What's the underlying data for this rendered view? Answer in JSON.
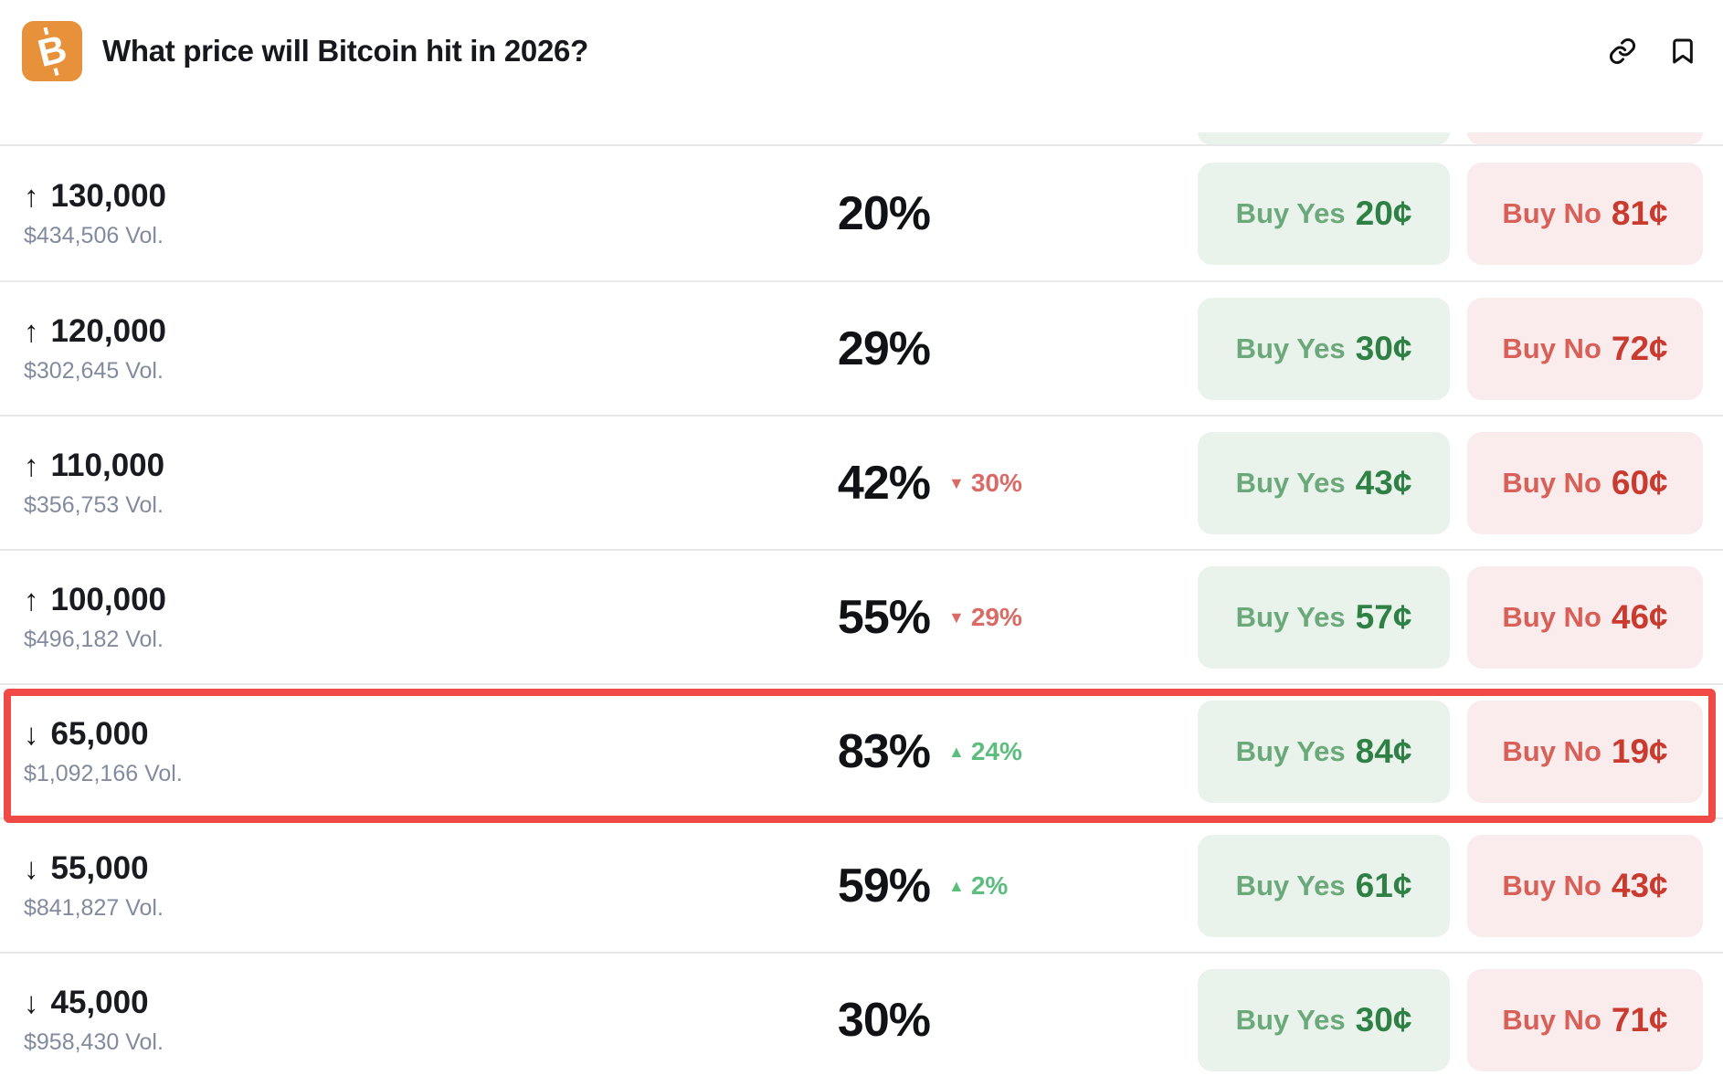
{
  "header": {
    "title": "What price will Bitcoin hit in 2026?",
    "icons": {
      "market": "bitcoin-icon",
      "link": "link-icon",
      "bookmark": "bookmark-icon"
    }
  },
  "glyphs": {
    "up_arrow": "↑",
    "down_arrow": "↓",
    "up_triangle": "▲",
    "down_triangle": "▼",
    "bitcoin": "B"
  },
  "buttons": {
    "yes_label": "Buy Yes",
    "no_label": "Buy No"
  },
  "colors": {
    "accent_orange": "#E8913B",
    "yes_green_bg": "#E9F2EB",
    "yes_green_text": "#6BA97B",
    "yes_green_price": "#2F8044",
    "no_red_bg": "#FAECEC",
    "no_red_text": "#D86058",
    "no_red_price": "#C93A2F",
    "up_green": "#5CBE7C",
    "down_red": "#D96A65",
    "highlight_red": "#EF4A45",
    "volume_gray": "#828B9E",
    "divider": "#E8E8E8",
    "text_dark": "#16181D"
  },
  "market": {
    "rows": [
      {
        "direction": "up",
        "price": "130,000",
        "volume": "$434,506 Vol.",
        "chance": "20%",
        "change": null,
        "yes_price": "20¢",
        "no_price": "81¢",
        "highlighted": false
      },
      {
        "direction": "up",
        "price": "120,000",
        "volume": "$302,645 Vol.",
        "chance": "29%",
        "change": null,
        "yes_price": "30¢",
        "no_price": "72¢",
        "highlighted": false
      },
      {
        "direction": "up",
        "price": "110,000",
        "volume": "$356,753 Vol.",
        "chance": "42%",
        "change": {
          "dir": "down",
          "value": "30%"
        },
        "yes_price": "43¢",
        "no_price": "60¢",
        "highlighted": false
      },
      {
        "direction": "up",
        "price": "100,000",
        "volume": "$496,182 Vol.",
        "chance": "55%",
        "change": {
          "dir": "down",
          "value": "29%"
        },
        "yes_price": "57¢",
        "no_price": "46¢",
        "highlighted": false
      },
      {
        "direction": "down",
        "price": "65,000",
        "volume": "$1,092,166 Vol.",
        "chance": "83%",
        "change": {
          "dir": "up",
          "value": "24%"
        },
        "yes_price": "84¢",
        "no_price": "19¢",
        "highlighted": true
      },
      {
        "direction": "down",
        "price": "55,000",
        "volume": "$841,827 Vol.",
        "chance": "59%",
        "change": {
          "dir": "up",
          "value": "2%"
        },
        "yes_price": "61¢",
        "no_price": "43¢",
        "highlighted": false
      },
      {
        "direction": "down",
        "price": "45,000",
        "volume": "$958,430 Vol.",
        "chance": "30%",
        "change": null,
        "yes_price": "30¢",
        "no_price": "71¢",
        "highlighted": false
      }
    ]
  }
}
